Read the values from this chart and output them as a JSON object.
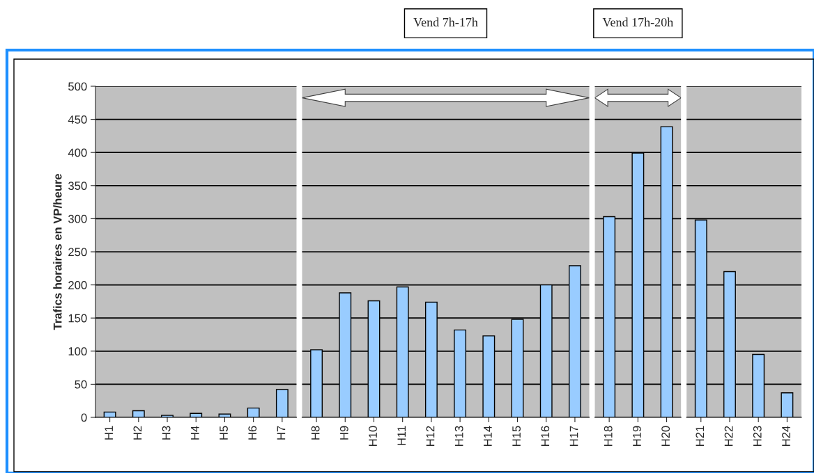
{
  "chart_data": [
    {
      "type": "bar",
      "ylabel": "Trafics horaires en VP/heure",
      "categories": [
        "H1",
        "H2",
        "H3",
        "H4",
        "H5",
        "H6",
        "H7"
      ],
      "values": [
        8,
        10,
        3,
        6,
        5,
        14,
        42
      ],
      "color": "#99ccff",
      "ylim": [
        0,
        500
      ],
      "yticks": [
        0,
        50,
        100,
        150,
        200,
        250,
        300,
        350,
        400,
        450,
        500
      ],
      "grid": "y"
    },
    {
      "type": "bar",
      "annotations": [
        "Vend 7h-17h"
      ],
      "categories": [
        "H8",
        "H9",
        "H10",
        "H11",
        "H12",
        "H13",
        "H14",
        "H15",
        "H16",
        "H17"
      ],
      "values": [
        102,
        188,
        176,
        197,
        174,
        132,
        123,
        148,
        200,
        229
      ],
      "color": "#99ccff",
      "ylim": [
        0,
        500
      ],
      "yticks": [
        0,
        50,
        100,
        150,
        200,
        250,
        300,
        350,
        400,
        450,
        500
      ],
      "grid": "y",
      "tick_labels": "x"
    },
    {
      "type": "bar",
      "annotations": [
        "Vend 17h-20h"
      ],
      "categories": [
        "H18",
        "H19",
        "H20"
      ],
      "values": [
        303,
        399,
        439
      ],
      "color": "#99ccff",
      "ylim": [
        0,
        500
      ],
      "yticks": [
        0,
        50,
        100,
        150,
        200,
        250,
        300,
        350,
        400,
        450,
        500
      ],
      "grid": "y",
      "tick_labels": "x"
    },
    {
      "type": "bar",
      "categories": [
        "H21",
        "H22",
        "H23",
        "H24"
      ],
      "values": [
        298,
        220,
        95,
        37
      ],
      "color": "#99ccff",
      "ylim": [
        0,
        500
      ],
      "yticks": [
        0,
        50,
        100,
        150,
        200,
        250,
        300,
        350,
        400,
        450,
        500
      ],
      "grid": "y",
      "tick_labels": "x"
    }
  ]
}
